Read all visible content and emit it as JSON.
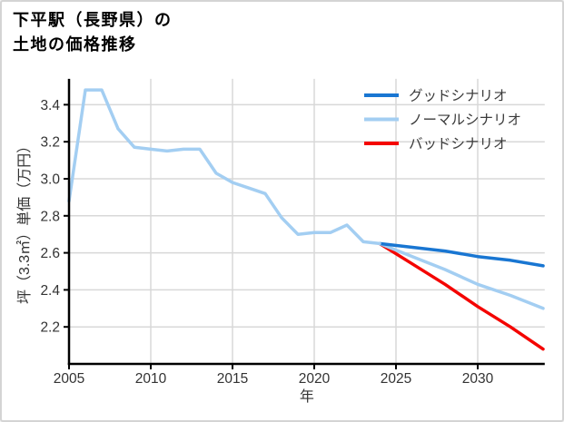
{
  "title": {
    "line1": "下平駅（長野県）の",
    "line2": "土地の価格推移"
  },
  "chart_data": {
    "type": "line",
    "title": "下平駅（長野県）の土地の価格推移",
    "xlabel": "年",
    "ylabel": "坪（3.3㎡）単価（万円）",
    "x_ticks": [
      2005,
      2010,
      2015,
      2020,
      2025,
      2030
    ],
    "y_ticks": [
      2.2,
      2.4,
      2.6,
      2.8,
      3.0,
      3.2,
      3.4
    ],
    "xlim": [
      2005,
      2034.1
    ],
    "ylim": [
      2.0,
      3.54
    ],
    "grid": true,
    "legend_position": "top-right",
    "colors": {
      "good": "#1976d2",
      "normal": "#a3cef2",
      "bad": "#f40400",
      "history": "#a3cef2",
      "gridline": "#d8d8d8",
      "axis": "#000000",
      "tick_label": "#333333",
      "legend_text": "#3b3b3b"
    },
    "series": [
      {
        "id": "history",
        "label": "",
        "in_legend": false,
        "color_key": "history",
        "points": [
          [
            2005,
            2.88
          ],
          [
            2006,
            3.48
          ],
          [
            2007,
            3.48
          ],
          [
            2008,
            3.27
          ],
          [
            2009,
            3.17
          ],
          [
            2010,
            3.16
          ],
          [
            2011,
            3.15
          ],
          [
            2012,
            3.16
          ],
          [
            2013,
            3.16
          ],
          [
            2014,
            3.03
          ],
          [
            2015,
            2.98
          ],
          [
            2016,
            2.95
          ],
          [
            2017,
            2.92
          ],
          [
            2018,
            2.79
          ],
          [
            2019,
            2.7
          ],
          [
            2020,
            2.71
          ],
          [
            2021,
            2.71
          ],
          [
            2022,
            2.75
          ],
          [
            2023,
            2.66
          ],
          [
            2024,
            2.65
          ]
        ]
      },
      {
        "id": "good",
        "label": "グッドシナリオ",
        "in_legend": true,
        "color_key": "good",
        "points": [
          [
            2024,
            2.65
          ],
          [
            2026,
            2.63
          ],
          [
            2028,
            2.61
          ],
          [
            2030,
            2.58
          ],
          [
            2032,
            2.56
          ],
          [
            2034,
            2.53
          ]
        ]
      },
      {
        "id": "normal",
        "label": "ノーマルシナリオ",
        "in_legend": true,
        "color_key": "normal",
        "points": [
          [
            2024,
            2.65
          ],
          [
            2026,
            2.58
          ],
          [
            2028,
            2.51
          ],
          [
            2030,
            2.43
          ],
          [
            2032,
            2.37
          ],
          [
            2034,
            2.3
          ]
        ]
      },
      {
        "id": "bad",
        "label": "バッドシナリオ",
        "in_legend": true,
        "color_key": "bad",
        "points": [
          [
            2024,
            2.65
          ],
          [
            2026,
            2.54
          ],
          [
            2028,
            2.43
          ],
          [
            2030,
            2.31
          ],
          [
            2032,
            2.2
          ],
          [
            2034,
            2.08
          ]
        ]
      }
    ]
  }
}
